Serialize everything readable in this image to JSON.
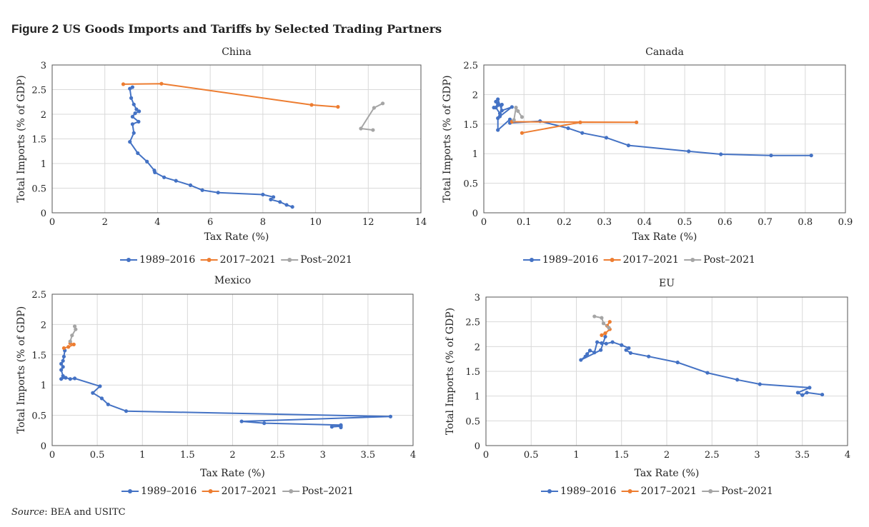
{
  "figure": {
    "number": "Figure 2",
    "title": "US Goods Imports and Tariffs by Selected Trading Partners",
    "source_label": "Source",
    "source_text": ": BEA and USITC"
  },
  "colors": {
    "s1989": "#4472C4",
    "s2017": "#ED7D31",
    "spost": "#A5A5A5"
  },
  "chart_data": [
    {
      "type": "line",
      "title": "China",
      "xlabel": "Tax Rate (%)",
      "ylabel": "Total Imports (% of GDP)",
      "xlim": [
        0,
        14
      ],
      "xticks": [
        0,
        2,
        4,
        6,
        8,
        10,
        12,
        14
      ],
      "ylim": [
        0,
        3
      ],
      "yticks": [
        0,
        0.5,
        1,
        1.5,
        2,
        2.5,
        3
      ],
      "grid": true,
      "legend": "bottom",
      "series": [
        {
          "name": "1989–2016",
          "color": "#4472C4",
          "points": [
            [
              9.12,
              0.12
            ],
            [
              8.9,
              0.16
            ],
            [
              8.65,
              0.22
            ],
            [
              8.3,
              0.27
            ],
            [
              8.4,
              0.32
            ],
            [
              8.0,
              0.37
            ],
            [
              6.3,
              0.41
            ],
            [
              5.7,
              0.46
            ],
            [
              5.25,
              0.56
            ],
            [
              4.7,
              0.65
            ],
            [
              4.25,
              0.72
            ],
            [
              3.9,
              0.82
            ],
            [
              3.88,
              0.86
            ],
            [
              3.6,
              1.04
            ],
            [
              3.25,
              1.21
            ],
            [
              2.95,
              1.44
            ],
            [
              3.1,
              1.62
            ],
            [
              3.05,
              1.8
            ],
            [
              3.28,
              1.85
            ],
            [
              3.05,
              1.95
            ],
            [
              3.15,
              2.02
            ],
            [
              3.3,
              2.06
            ],
            [
              3.2,
              2.1
            ],
            [
              3.1,
              2.2
            ],
            [
              3.0,
              2.33
            ],
            [
              2.95,
              2.52
            ],
            [
              3.05,
              2.55
            ]
          ]
        },
        {
          "name": "2017–2021",
          "color": "#ED7D31",
          "points": [
            [
              10.85,
              2.15
            ],
            [
              9.85,
              2.19
            ],
            [
              4.15,
              2.62
            ],
            [
              2.7,
              2.61
            ]
          ]
        },
        {
          "name": "Post–2021",
          "color": "#A5A5A5",
          "points": [
            [
              12.18,
              1.68
            ],
            [
              11.72,
              1.71
            ],
            [
              12.22,
              2.13
            ],
            [
              12.55,
              2.22
            ]
          ]
        }
      ]
    },
    {
      "type": "line",
      "title": "Canada",
      "xlabel": "Tax Rate (%)",
      "ylabel": "Total Imports (% of GDP)",
      "xlim": [
        0,
        0.9
      ],
      "xticks": [
        0,
        0.1,
        0.2,
        0.3,
        0.4,
        0.5,
        0.6,
        0.7,
        0.8,
        0.9
      ],
      "ylim": [
        0,
        2.5
      ],
      "yticks": [
        0,
        0.5,
        1,
        1.5,
        2,
        2.5
      ],
      "grid": true,
      "legend": "bottom",
      "series": [
        {
          "name": "1989–2016",
          "color": "#4472C4",
          "points": [
            [
              0.815,
              0.97
            ],
            [
              0.715,
              0.97
            ],
            [
              0.59,
              0.99
            ],
            [
              0.51,
              1.04
            ],
            [
              0.36,
              1.14
            ],
            [
              0.305,
              1.27
            ],
            [
              0.245,
              1.35
            ],
            [
              0.21,
              1.43
            ],
            [
              0.14,
              1.55
            ],
            [
              0.065,
              1.52
            ],
            [
              0.065,
              1.58
            ],
            [
              0.035,
              1.4
            ],
            [
              0.035,
              1.6
            ],
            [
              0.04,
              1.68
            ],
            [
              0.03,
              1.78
            ],
            [
              0.035,
              1.85
            ],
            [
              0.03,
              1.88
            ],
            [
              0.035,
              1.92
            ],
            [
              0.045,
              1.73
            ],
            [
              0.07,
              1.79
            ],
            [
              0.04,
              1.63
            ],
            [
              0.045,
              1.83
            ],
            [
              0.025,
              1.78
            ],
            [
              0.035,
              1.82
            ]
          ]
        },
        {
          "name": "2017–2021",
          "color": "#ED7D31",
          "points": [
            [
              0.095,
              1.35
            ],
            [
              0.24,
              1.53
            ],
            [
              0.38,
              1.53
            ],
            [
              0.07,
              1.54
            ]
          ]
        },
        {
          "name": "Post–2021",
          "color": "#A5A5A5",
          "points": [
            [
              0.075,
              1.57
            ],
            [
              0.08,
              1.78
            ],
            [
              0.085,
              1.72
            ],
            [
              0.095,
              1.62
            ]
          ]
        }
      ]
    },
    {
      "type": "line",
      "title": "Mexico",
      "xlabel": "Tax Rate (%)",
      "ylabel": "Total Imports (% of GDP)",
      "xlim": [
        0,
        4
      ],
      "xticks": [
        0,
        0.5,
        1,
        1.5,
        2,
        2.5,
        3,
        3.5,
        4
      ],
      "ylim": [
        0,
        2.5
      ],
      "yticks": [
        0,
        0.5,
        1,
        1.5,
        2,
        2.5
      ],
      "grid": true,
      "legend": "bottom",
      "series": [
        {
          "name": "1989–2016",
          "color": "#4472C4",
          "points": [
            [
              3.2,
              0.3
            ],
            [
              3.2,
              0.32
            ],
            [
              3.1,
              0.31
            ],
            [
              3.2,
              0.34
            ],
            [
              2.35,
              0.37
            ],
            [
              2.1,
              0.4
            ],
            [
              3.75,
              0.48
            ],
            [
              0.82,
              0.57
            ],
            [
              0.62,
              0.68
            ],
            [
              0.55,
              0.78
            ],
            [
              0.45,
              0.87
            ],
            [
              0.53,
              0.98
            ],
            [
              0.25,
              1.11
            ],
            [
              0.2,
              1.1
            ],
            [
              0.15,
              1.12
            ],
            [
              0.1,
              1.1
            ],
            [
              0.12,
              1.15
            ],
            [
              0.1,
              1.25
            ],
            [
              0.12,
              1.3
            ],
            [
              0.1,
              1.35
            ],
            [
              0.12,
              1.4
            ],
            [
              0.13,
              1.47
            ],
            [
              0.14,
              1.57
            ]
          ]
        },
        {
          "name": "2017–2021",
          "color": "#ED7D31",
          "points": [
            [
              0.13,
              1.61
            ],
            [
              0.18,
              1.63
            ],
            [
              0.24,
              1.67
            ],
            [
              0.2,
              1.69
            ]
          ]
        },
        {
          "name": "Post–2021",
          "color": "#A5A5A5",
          "points": [
            [
              0.2,
              1.72
            ],
            [
              0.22,
              1.82
            ],
            [
              0.26,
              1.92
            ],
            [
              0.25,
              1.97
            ]
          ]
        }
      ]
    },
    {
      "type": "line",
      "title": "EU",
      "xlabel": "Tax Rate (%)",
      "ylabel": "Total Imports (% of GDP)",
      "xlim": [
        0,
        4
      ],
      "xticks": [
        0,
        0.5,
        1,
        1.5,
        2,
        2.5,
        3,
        3.5,
        4
      ],
      "ylim": [
        0,
        3
      ],
      "yticks": [
        0,
        0.5,
        1,
        1.5,
        2,
        2.5,
        3
      ],
      "grid": true,
      "legend": "bottom",
      "series": [
        {
          "name": "1989–2016",
          "color": "#4472C4",
          "points": [
            [
              3.72,
              1.03
            ],
            [
              3.55,
              1.07
            ],
            [
              3.5,
              1.02
            ],
            [
              3.45,
              1.07
            ],
            [
              3.58,
              1.17
            ],
            [
              3.03,
              1.24
            ],
            [
              2.78,
              1.33
            ],
            [
              2.45,
              1.47
            ],
            [
              2.12,
              1.68
            ],
            [
              1.8,
              1.8
            ],
            [
              1.6,
              1.87
            ],
            [
              1.55,
              1.93
            ],
            [
              1.58,
              1.97
            ],
            [
              1.5,
              2.03
            ],
            [
              1.4,
              2.09
            ],
            [
              1.33,
              2.06
            ],
            [
              1.28,
              2.07
            ],
            [
              1.23,
              2.09
            ],
            [
              1.2,
              1.88
            ],
            [
              1.15,
              1.92
            ],
            [
              1.12,
              1.85
            ],
            [
              1.1,
              1.8
            ],
            [
              1.05,
              1.73
            ],
            [
              1.27,
              1.93
            ],
            [
              1.32,
              2.2
            ]
          ]
        },
        {
          "name": "2017–2021",
          "color": "#ED7D31",
          "points": [
            [
              1.28,
              2.23
            ],
            [
              1.32,
              2.27
            ],
            [
              1.37,
              2.35
            ],
            [
              1.34,
              2.42
            ],
            [
              1.37,
              2.5
            ]
          ]
        },
        {
          "name": "Post–2021",
          "color": "#A5A5A5",
          "points": [
            [
              1.36,
              2.38
            ],
            [
              1.3,
              2.47
            ],
            [
              1.28,
              2.58
            ],
            [
              1.2,
              2.61
            ]
          ]
        }
      ]
    }
  ]
}
